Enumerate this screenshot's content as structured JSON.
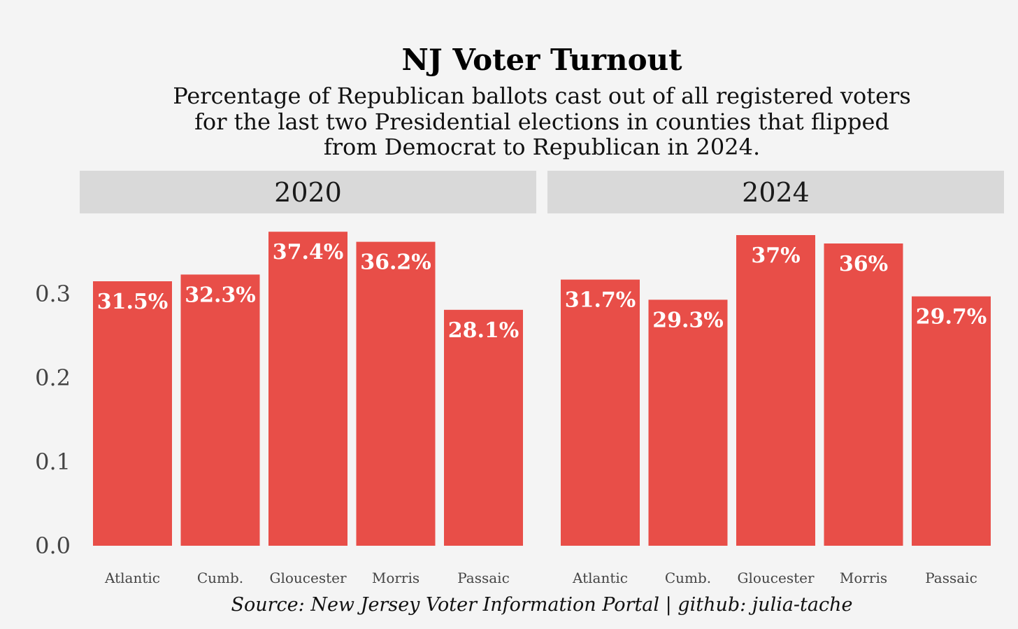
{
  "chart_data": {
    "type": "bar",
    "title": "NJ Voter Turnout",
    "subtitle": [
      "Percentage of Republican ballots cast out of all registered voters",
      "for the last two Presidential elections in counties that flipped",
      "from Democrat to Republican in 2024."
    ],
    "caption": "Source: New Jersey Voter Information Portal | github: julia-tache",
    "ylim": [
      0,
      0.38
    ],
    "yticks": [
      0.0,
      0.1,
      0.2,
      0.3
    ],
    "ytick_labels": [
      "0.0",
      "0.1",
      "0.2",
      "0.3"
    ],
    "bar_color": "#e84e48",
    "strip_color": "#d9d9d9",
    "background": "#f4f4f4",
    "panels": [
      {
        "name": "2020",
        "categories": [
          "Atlantic",
          "Cumb.",
          "Gloucester",
          "Morris",
          "Passaic"
        ],
        "values": [
          0.315,
          0.323,
          0.374,
          0.362,
          0.281
        ],
        "labels": [
          "31.5%",
          "32.3%",
          "37.4%",
          "36.2%",
          "28.1%"
        ]
      },
      {
        "name": "2024",
        "categories": [
          "Atlantic",
          "Cumb.",
          "Gloucester",
          "Morris",
          "Passaic"
        ],
        "values": [
          0.317,
          0.293,
          0.37,
          0.36,
          0.297
        ],
        "labels": [
          "31.7%",
          "29.3%",
          "37%",
          "36%",
          "29.7%"
        ]
      }
    ]
  }
}
